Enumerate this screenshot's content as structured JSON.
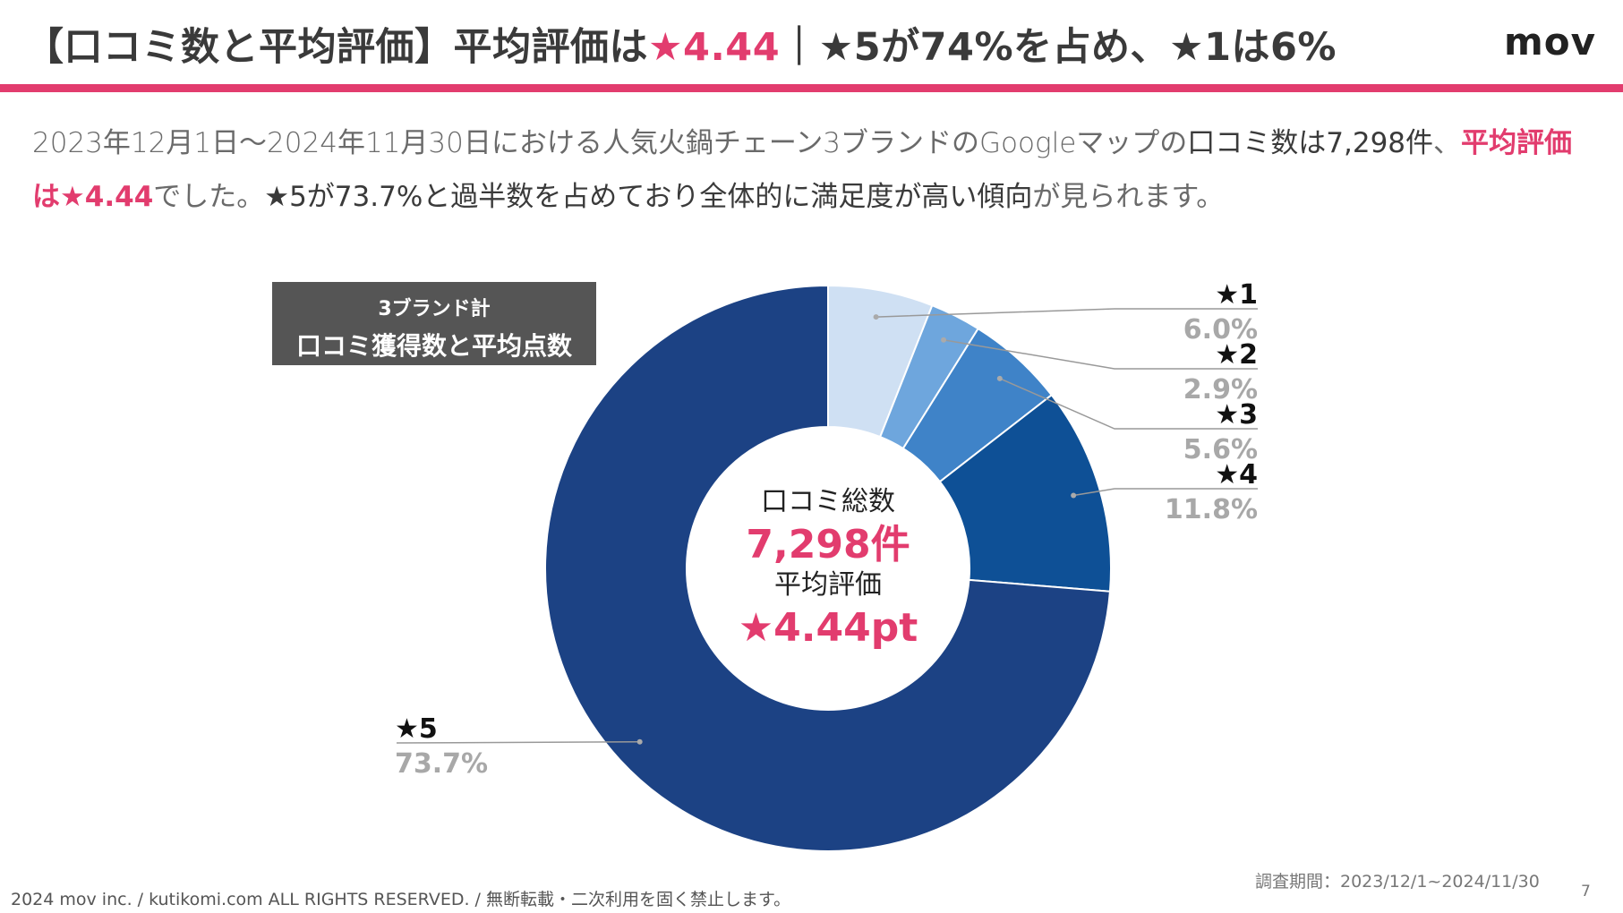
{
  "header": {
    "title_part1": "【口コミ数と平均評価】平均評価は",
    "title_accent": "★4.44",
    "title_part2": "｜★5が74%を占め、★1は6%",
    "logo": "mov"
  },
  "description": {
    "p1": "2023年12月1日～2024年11月30日における人気火鍋チェーン3ブランドのGoogleマップの",
    "b1": "口コミ数は7,298件",
    "p2": "、",
    "hl": "平均評価は★4.44",
    "p3": "でした。",
    "b2": "★5が73.7%と過半数を占めており全体的に満足度が高い傾向",
    "p4": "が見られます。"
  },
  "label_box": {
    "line1": "3ブランド計",
    "line2": "口コミ獲得数と平均点数"
  },
  "center": {
    "total_label": "口コミ総数",
    "total_value": "7,298件",
    "avg_label": "平均評価",
    "avg_value": "★4.44pt"
  },
  "chart_data": {
    "type": "pie",
    "donut": true,
    "categories": [
      "★1",
      "★2",
      "★3",
      "★4",
      "★5"
    ],
    "values": [
      6.0,
      2.9,
      5.6,
      11.8,
      73.7
    ],
    "value_labels": [
      "6.0%",
      "2.9%",
      "5.6%",
      "11.8%",
      "73.7%"
    ],
    "colors": [
      "#cfe0f3",
      "#6ea6dd",
      "#3f83c8",
      "#0e5096",
      "#1c4284"
    ]
  },
  "footer": {
    "copyright": "2024 mov inc. / kutikomi.com ALL RIGHTS RESERVED. / 無断転載・二次利用を固く禁止します。",
    "period": "調査期間：2023/12/1~2024/11/30",
    "page": "7"
  }
}
